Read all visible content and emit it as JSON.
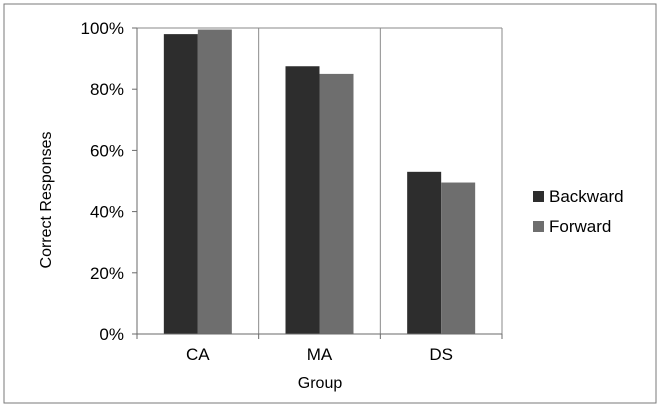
{
  "chart_data": {
    "type": "bar",
    "categories": [
      "CA",
      "MA",
      "DS"
    ],
    "series": [
      {
        "name": "Backward",
        "values": [
          98,
          87.5,
          53
        ]
      },
      {
        "name": "Forward",
        "values": [
          99.5,
          85,
          49.5
        ]
      }
    ],
    "xlabel": "Group",
    "ylabel": "Correct Responses",
    "ylim": [
      0,
      100
    ],
    "ytick_values": [
      0,
      20,
      40,
      60,
      80,
      100
    ],
    "ytick_labels": [
      "0%",
      "20%",
      "40%",
      "60%",
      "80%",
      "100%"
    ],
    "grid": "vertical category separators",
    "legend_position": "right",
    "colors": {
      "Backward": "#2d2d2d",
      "Forward": "#6e6e6e"
    }
  }
}
